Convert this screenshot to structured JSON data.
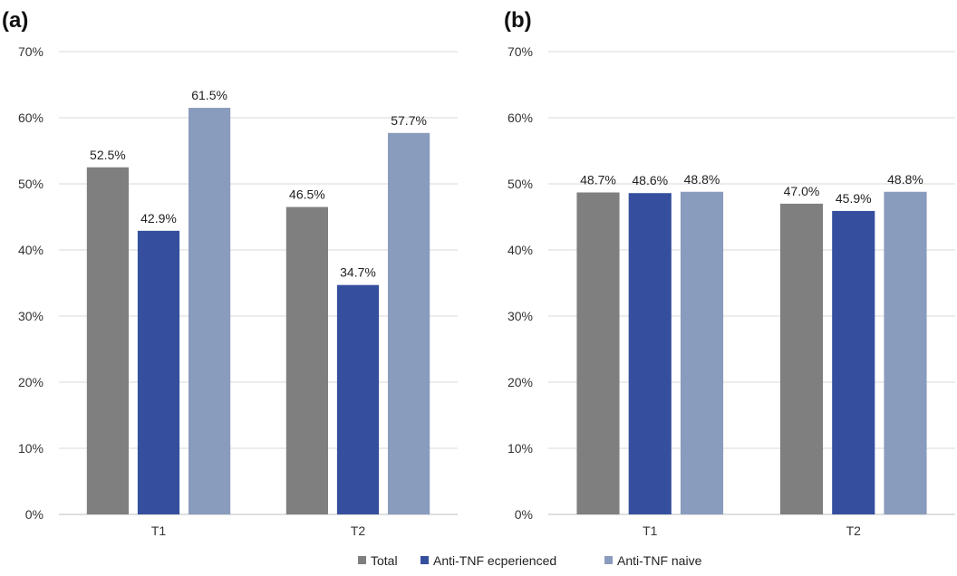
{
  "legend": [
    {
      "name": "Total",
      "color": "#7f7f80"
    },
    {
      "name": "Anti-TNF ecperienced",
      "color": "#354f9e"
    },
    {
      "name": "Anti-TNF naive",
      "color": "#8a9cbd"
    }
  ],
  "chart_data": [
    {
      "type": "bar",
      "panel_label": "(a)",
      "categories": [
        "T1",
        "T2"
      ],
      "series": [
        {
          "name": "Total",
          "values": [
            52.5,
            46.5
          ],
          "labels": [
            "52.5%",
            "46.5%"
          ]
        },
        {
          "name": "Anti-TNF ecperienced",
          "values": [
            42.9,
            34.7
          ],
          "labels": [
            "42.9%",
            "34.7%"
          ]
        },
        {
          "name": "Anti-TNF naive",
          "values": [
            61.5,
            57.7
          ],
          "labels": [
            "61.5%",
            "57.7%"
          ]
        }
      ],
      "ylim": [
        0,
        70
      ],
      "yticks": [
        "0%",
        "10%",
        "20%",
        "30%",
        "40%",
        "50%",
        "60%",
        "70%"
      ],
      "grid": true
    },
    {
      "type": "bar",
      "panel_label": "(b)",
      "categories": [
        "T1",
        "T2"
      ],
      "series": [
        {
          "name": "Total",
          "values": [
            48.7,
            47.0
          ],
          "labels": [
            "48.7%",
            "47.0%"
          ]
        },
        {
          "name": "Anti-TNF ecperienced",
          "values": [
            48.6,
            45.9
          ],
          "labels": [
            "48.6%",
            "45.9%"
          ]
        },
        {
          "name": "Anti-TNF naive",
          "values": [
            48.8,
            48.8
          ],
          "labels": [
            "48.8%",
            "48.8%"
          ]
        }
      ],
      "ylim": [
        0,
        70
      ],
      "yticks": [
        "0%",
        "10%",
        "20%",
        "30%",
        "40%",
        "50%",
        "60%",
        "70%"
      ],
      "grid": true
    }
  ]
}
